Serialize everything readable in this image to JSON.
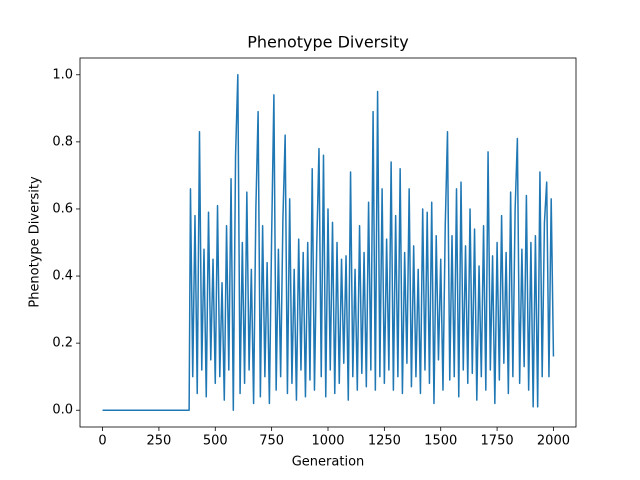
{
  "chart_data": {
    "type": "line",
    "title": "Phenotype Diversity",
    "xlabel": "Generation",
    "ylabel": "Phenotype Diversity",
    "color": "#1f77b4",
    "xlim": [
      -100,
      2100
    ],
    "ylim": [
      -0.05,
      1.05
    ],
    "xticks": [
      0,
      250,
      500,
      750,
      1000,
      1250,
      1500,
      1750,
      2000
    ],
    "yticks": [
      {
        "value": 0,
        "label": "0.0"
      },
      0.2,
      0.4,
      0.6,
      0.8,
      {
        "value": 1,
        "label": "1.0"
      }
    ],
    "x": [
      0,
      384,
      390,
      400,
      410,
      420,
      430,
      440,
      450,
      460,
      470,
      480,
      490,
      500,
      510,
      520,
      530,
      540,
      550,
      560,
      570,
      580,
      590,
      600,
      610,
      620,
      630,
      640,
      650,
      660,
      670,
      680,
      690,
      700,
      710,
      720,
      730,
      740,
      750,
      760,
      770,
      780,
      790,
      800,
      810,
      820,
      830,
      840,
      850,
      860,
      870,
      880,
      890,
      900,
      910,
      920,
      930,
      940,
      950,
      960,
      970,
      980,
      990,
      1000,
      1010,
      1020,
      1030,
      1040,
      1050,
      1060,
      1070,
      1080,
      1090,
      1100,
      1110,
      1120,
      1130,
      1140,
      1150,
      1160,
      1170,
      1180,
      1190,
      1200,
      1210,
      1220,
      1230,
      1240,
      1250,
      1260,
      1270,
      1280,
      1290,
      1300,
      1310,
      1320,
      1330,
      1340,
      1350,
      1360,
      1370,
      1380,
      1390,
      1400,
      1410,
      1420,
      1430,
      1440,
      1450,
      1460,
      1470,
      1480,
      1490,
      1500,
      1510,
      1520,
      1530,
      1540,
      1550,
      1560,
      1570,
      1580,
      1590,
      1600,
      1610,
      1620,
      1630,
      1640,
      1650,
      1660,
      1670,
      1680,
      1690,
      1700,
      1710,
      1720,
      1730,
      1740,
      1750,
      1760,
      1770,
      1780,
      1790,
      1800,
      1810,
      1820,
      1830,
      1840,
      1850,
      1860,
      1870,
      1880,
      1890,
      1900,
      1910,
      1920,
      1930,
      1940,
      1950,
      1960,
      1970,
      1980,
      1990,
      2000
    ],
    "values": [
      0,
      0,
      0.66,
      0.1,
      0.58,
      0.05,
      0.83,
      0.12,
      0.48,
      0.04,
      0.59,
      0.15,
      0.45,
      0.08,
      0.61,
      0.1,
      0.38,
      0.03,
      0.55,
      0.12,
      0.69,
      0.0,
      0.76,
      1.0,
      0.05,
      0.5,
      0.08,
      0.65,
      0.12,
      0.42,
      0.02,
      0.6,
      0.89,
      0.04,
      0.55,
      0.1,
      0.44,
      0.02,
      0.52,
      0.94,
      0.06,
      0.48,
      0.1,
      0.57,
      0.82,
      0.05,
      0.63,
      0.08,
      0.42,
      0.03,
      0.51,
      0.12,
      0.47,
      0.04,
      0.5,
      0.09,
      0.72,
      0.06,
      0.49,
      0.78,
      0.1,
      0.76,
      0.04,
      0.6,
      0.12,
      0.56,
      0.05,
      0.5,
      0.08,
      0.45,
      0.14,
      0.46,
      0.03,
      0.71,
      0.1,
      0.42,
      0.06,
      0.55,
      0.11,
      0.47,
      0.07,
      0.62,
      0.12,
      0.89,
      0.06,
      0.95,
      0.1,
      0.66,
      0.08,
      0.51,
      0.12,
      0.74,
      0.06,
      0.58,
      0.1,
      0.72,
      0.05,
      0.47,
      0.14,
      0.66,
      0.07,
      0.49,
      0.1,
      0.42,
      0.05,
      0.6,
      0.12,
      0.59,
      0.08,
      0.62,
      0.02,
      0.52,
      0.15,
      0.45,
      0.06,
      0.55,
      0.83,
      0.09,
      0.52,
      0.1,
      0.66,
      0.04,
      0.68,
      0.12,
      0.49,
      0.08,
      0.6,
      0.11,
      0.54,
      0.03,
      0.43,
      0.1,
      0.55,
      0.06,
      0.77,
      0.12,
      0.46,
      0.02,
      0.5,
      0.09,
      0.58,
      0.14,
      0.47,
      0.05,
      0.65,
      0.1,
      0.6,
      0.81,
      0.08,
      0.48,
      0.13,
      0.64,
      0.06,
      0.5,
      0.01,
      0.52,
      0.01,
      0.71,
      0.1,
      0.56,
      0.68,
      0.1,
      0.63,
      0.16
    ]
  }
}
